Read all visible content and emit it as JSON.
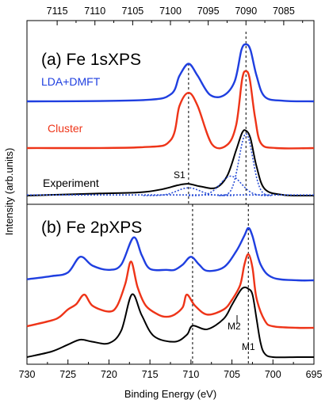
{
  "chart_data": {
    "type": "line",
    "xlabel": "Binding Energy (eV)",
    "ylabel": "Intensity (arb.units)",
    "xlim": [
      730,
      695
    ],
    "x_ticks": [
      "730",
      "725",
      "720",
      "715",
      "710",
      "705",
      "700",
      "695"
    ],
    "top_axis": {
      "xlim": [
        7119,
        7081
      ],
      "ticks": [
        "7115",
        "7110",
        "7105",
        "7100",
        "7095",
        "7090",
        "7085"
      ]
    },
    "reference_lines": {
      "bottom_axis": [
        709.8,
        703.0
      ],
      "top_axis": [
        7097.6,
        7090.0
      ]
    },
    "colors": {
      "lda_dmft": "#1f3fe0",
      "cluster": "#ee3418",
      "experiment": "#000000",
      "fit": "#2b4fd6"
    },
    "panels": [
      {
        "title": "(a) Fe 1sXPS",
        "axis": "top",
        "series": [
          {
            "name": "LDA+DMFT",
            "x": [
              7119,
              7104,
              7100,
              7098.8,
              7097.6,
              7096.4,
              7094.8,
              7093,
              7091.5,
              7090.6,
              7090,
              7089.4,
              7088.6,
              7087.5,
              7085,
              7081
            ],
            "values": [
              0.0,
              0.02,
              0.12,
              0.45,
              0.66,
              0.45,
              0.12,
              0.1,
              0.35,
              0.9,
              1.0,
              0.9,
              0.45,
              0.08,
              0.01,
              0.0
            ]
          },
          {
            "name": "Cluster",
            "x": [
              7119,
              7104,
              7100,
              7098.8,
              7097.6,
              7096.4,
              7094.5,
              7092.5,
              7091.3,
              7090.5,
              7090,
              7089.5,
              7088.8,
              7088,
              7086,
              7081
            ],
            "values": [
              0.0,
              0.01,
              0.1,
              0.55,
              0.72,
              0.55,
              0.05,
              0.04,
              0.3,
              0.9,
              1.0,
              0.9,
              0.4,
              0.06,
              0.0,
              0.0
            ]
          },
          {
            "name": "Experiment",
            "x": [
              7119,
              7110,
              7104,
              7101,
              7099,
              7097.6,
              7096,
              7094,
              7092.5,
              7091.3,
              7090.5,
              7090,
              7089.4,
              7088.6,
              7087.5,
              7085,
              7081
            ],
            "values": [
              0.0,
              0.03,
              0.05,
              0.1,
              0.16,
              0.18,
              0.14,
              0.12,
              0.3,
              0.7,
              0.97,
              1.0,
              0.88,
              0.45,
              0.1,
              0.01,
              0.0
            ]
          }
        ],
        "annotations": [
          "S1"
        ]
      },
      {
        "title": "(b) Fe 2pXPS",
        "axis": "bottom",
        "series": [
          {
            "name": "LDA+DMFT",
            "x": [
              730,
              727,
              725,
              723.5,
              722,
              720,
              718.5,
              717,
              716,
              715,
              713,
              712,
              711,
              710,
              709,
              708,
              706,
              704.5,
              703.5,
              703,
              702.5,
              701.5,
              700,
              697,
              695
            ],
            "values": [
              0.02,
              0.08,
              0.15,
              0.45,
              0.28,
              0.2,
              0.3,
              0.82,
              0.48,
              0.22,
              0.2,
              0.2,
              0.3,
              0.45,
              0.3,
              0.18,
              0.25,
              0.55,
              0.85,
              1.0,
              0.85,
              0.3,
              0.05,
              0.0,
              0.0
            ]
          },
          {
            "name": "Cluster",
            "x": [
              730,
              727,
              726,
              725,
              724,
              723,
              722,
              720,
              719,
              718,
              717.3,
              716.5,
              715.5,
              714,
              713,
              712,
              711,
              710.5,
              709.5,
              708,
              706,
              705,
              704,
              703.5,
              703,
              702.5,
              702,
              701,
              700,
              697,
              695
            ],
            "values": [
              0.02,
              0.1,
              0.15,
              0.25,
              0.32,
              0.45,
              0.3,
              0.22,
              0.3,
              0.6,
              0.9,
              0.55,
              0.3,
              0.18,
              0.15,
              0.18,
              0.28,
              0.45,
              0.3,
              0.18,
              0.25,
              0.38,
              0.58,
              0.85,
              1.0,
              0.82,
              0.4,
              0.1,
              0.02,
              0.0,
              0.0
            ]
          },
          {
            "name": "Experiment",
            "x": [
              730,
              727,
              725,
              723.5,
              722,
              720,
              718.5,
              717.2,
              716,
              714.5,
              712,
              710.5,
              709.8,
              708,
              706,
              705,
              704,
              703.5,
              703,
              702.5,
              702,
              701.5,
              701,
              700,
              697,
              695
            ],
            "values": [
              0.0,
              0.08,
              0.18,
              0.25,
              0.22,
              0.2,
              0.38,
              0.9,
              0.6,
              0.3,
              0.22,
              0.32,
              0.45,
              0.4,
              0.55,
              0.75,
              0.95,
              1.0,
              0.98,
              0.9,
              0.55,
              0.2,
              0.05,
              0.0,
              0.0,
              0.0
            ]
          }
        ],
        "annotations": [
          "M2",
          "M1"
        ]
      }
    ]
  }
}
